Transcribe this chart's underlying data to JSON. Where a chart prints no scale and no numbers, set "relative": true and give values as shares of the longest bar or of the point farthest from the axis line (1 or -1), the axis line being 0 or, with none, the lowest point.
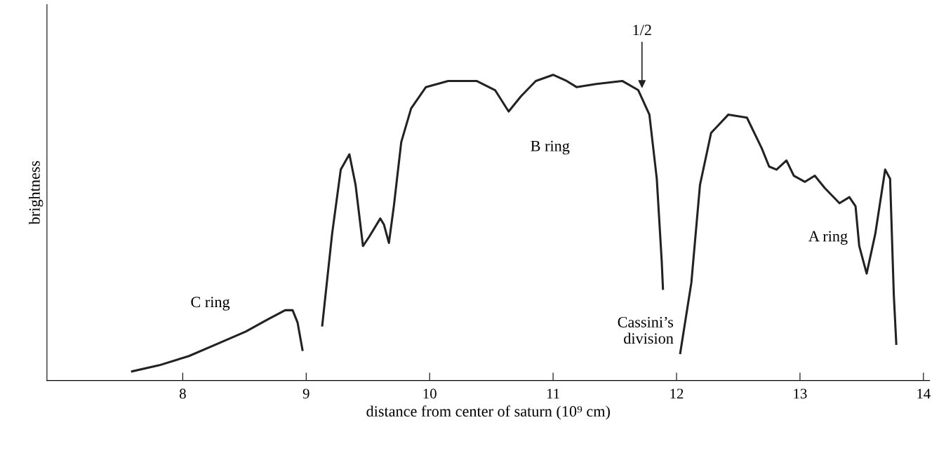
{
  "chart_data": {
    "type": "line",
    "relative": true,
    "xlabel": "distance from center of saturn (10⁹ cm)",
    "ylabel": "brightness",
    "xlim": [
      6.9,
      14.05
    ],
    "xticks": [
      8,
      9,
      10,
      11,
      12,
      13,
      14
    ],
    "grid": false,
    "marker": "none",
    "line_style": "solid",
    "series": [
      {
        "color": "#222222",
        "x": [
          7.59,
          7.81,
          8.05,
          8.28,
          8.51,
          8.69,
          8.83,
          8.89,
          8.93,
          8.97,
          null,
          9.13,
          9.21,
          9.28,
          9.35,
          9.4,
          9.46,
          9.51,
          9.6,
          9.63,
          9.67,
          9.71,
          9.77,
          9.85,
          9.97,
          10.15,
          10.38,
          10.53,
          10.64,
          10.74,
          10.86,
          11.0,
          11.11,
          11.19,
          11.35,
          11.56,
          11.69,
          11.78,
          11.84,
          11.88,
          11.89,
          null,
          12.03,
          12.12,
          12.19,
          12.28,
          12.42,
          12.57,
          12.69,
          12.75,
          12.81,
          12.89,
          12.95,
          13.04,
          13.12,
          13.2,
          13.32,
          13.4,
          13.45,
          13.48,
          13.54,
          13.61,
          13.69,
          13.73,
          13.76,
          13.78
        ],
        "values": [
          0.03,
          0.05,
          0.08,
          0.12,
          0.16,
          0.2,
          0.23,
          0.23,
          0.19,
          0.1,
          null,
          0.18,
          0.48,
          0.69,
          0.74,
          0.64,
          0.44,
          0.47,
          0.53,
          0.51,
          0.45,
          0.57,
          0.78,
          0.89,
          0.96,
          0.98,
          0.98,
          0.95,
          0.88,
          0.93,
          0.98,
          1.0,
          0.98,
          0.96,
          0.97,
          0.98,
          0.95,
          0.87,
          0.66,
          0.39,
          0.3,
          null,
          0.09,
          0.32,
          0.64,
          0.81,
          0.87,
          0.86,
          0.76,
          0.7,
          0.69,
          0.72,
          0.67,
          0.65,
          0.67,
          0.63,
          0.58,
          0.6,
          0.57,
          0.44,
          0.35,
          0.48,
          0.69,
          0.66,
          0.28,
          0.12
        ]
      }
    ],
    "annotations": [
      "C ring",
      "B ring",
      "A ring",
      "Cassini’s\ndivision",
      {
        "text": "1/2",
        "x": 11.72,
        "y": 0.95
      }
    ]
  }
}
